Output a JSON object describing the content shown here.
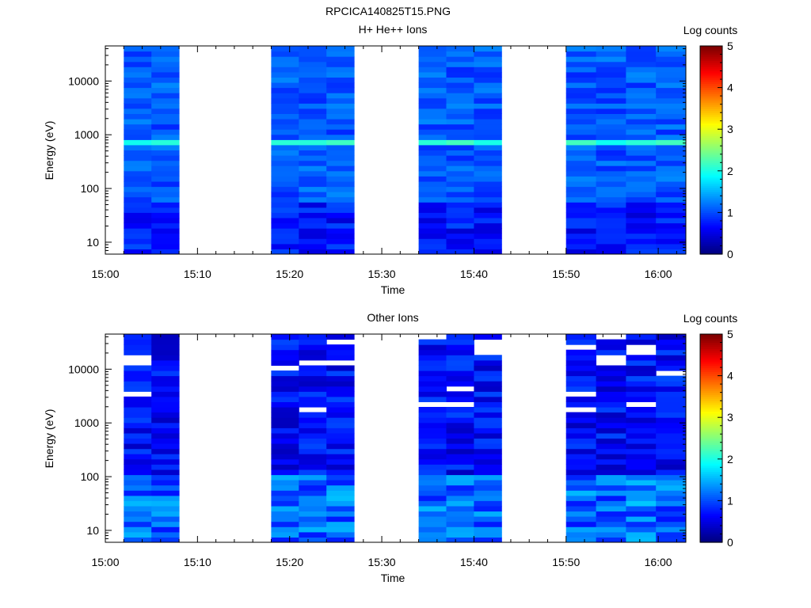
{
  "figure_title": "RPCICA140825T15.PNG",
  "chart_data": [
    {
      "type": "heatmap",
      "title": "H+ He++ Ions",
      "xlabel": "Time",
      "ylabel": "Energy (eV)",
      "colorbar_label": "Log counts",
      "y_scale": "log",
      "ylim": [
        6,
        45000
      ],
      "xlim": [
        "15:00",
        "16:03"
      ],
      "x_ticks": [
        "15:00",
        "15:10",
        "15:20",
        "15:30",
        "15:40",
        "15:50",
        "16:00"
      ],
      "y_ticks": [
        "10",
        "100",
        "1000",
        "10000"
      ],
      "colorbar_range": [
        0,
        5
      ],
      "colorbar_ticks": [
        "0",
        "1",
        "2",
        "3",
        "4",
        "5"
      ],
      "data_blocks": [
        "15:02-15:08",
        "15:18-15:27",
        "15:34-15:43",
        "15:50-16:03"
      ],
      "notes": "bright band near 700-800 eV (log counts ~2)"
    },
    {
      "type": "heatmap",
      "title": "Other Ions",
      "xlabel": "Time",
      "ylabel": "Energy (eV)",
      "colorbar_label": "Log counts",
      "y_scale": "log",
      "ylim": [
        6,
        45000
      ],
      "xlim": [
        "15:00",
        "16:03"
      ],
      "x_ticks": [
        "15:00",
        "15:10",
        "15:20",
        "15:30",
        "15:40",
        "15:50",
        "16:00"
      ],
      "y_ticks": [
        "10",
        "100",
        "1000",
        "10000"
      ],
      "colorbar_range": [
        0,
        5
      ],
      "colorbar_ticks": [
        "0",
        "1",
        "2",
        "3",
        "4",
        "5"
      ],
      "data_blocks": [
        "15:02-15:08",
        "15:18-15:27",
        "15:34-15:43",
        "15:50-16:03"
      ],
      "notes": "mostly 0-1.5 log counts with gaps at high energy"
    }
  ]
}
